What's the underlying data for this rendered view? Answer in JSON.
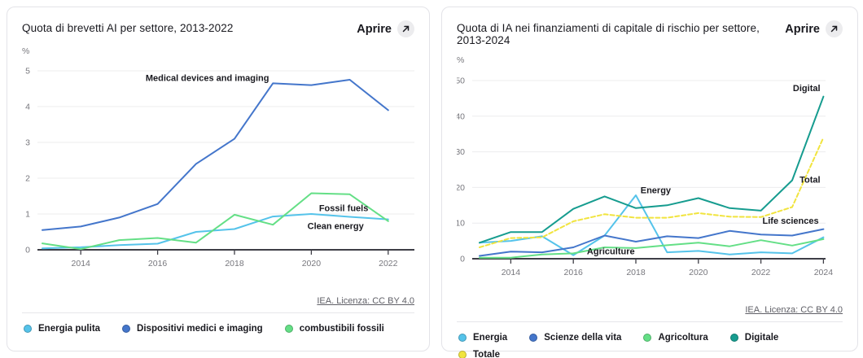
{
  "cards": [
    {
      "title": "Quota di brevetti AI per settore, 2013-2022",
      "open_label": "Aprire",
      "attribution": "IEA. Licenza: CC BY 4.0"
    },
    {
      "title": "Quota di IA nei finanziamenti di capitale di rischio per settore, 2013-2024",
      "open_label": "Aprire",
      "attribution": "IEA. Licenza: CC BY 4.0"
    }
  ],
  "chart_data": [
    {
      "type": "line",
      "title": "Quota di brevetti AI per settore, 2013-2022",
      "unit": "%",
      "x": [
        2013,
        2014,
        2015,
        2016,
        2017,
        2018,
        2019,
        2020,
        2021,
        2022
      ],
      "x_ticks": [
        2014,
        2016,
        2018,
        2020,
        2022
      ],
      "y_ticks": [
        0,
        1,
        2,
        3,
        4,
        5
      ],
      "ylim": [
        0,
        5
      ],
      "grid": true,
      "legend_position": "bottom",
      "series": [
        {
          "name": "Energia pulita",
          "color": "#55C3EA",
          "dashed": false,
          "values": [
            0.04,
            0.07,
            0.13,
            0.17,
            0.5,
            0.58,
            0.93,
            1.0,
            0.92,
            0.85
          ]
        },
        {
          "name": "Dispositivi medici e imaging",
          "color": "#4476CB",
          "dashed": false,
          "values": [
            0.55,
            0.65,
            0.9,
            1.28,
            2.4,
            3.1,
            4.65,
            4.6,
            4.75,
            3.9
          ]
        },
        {
          "name": "combustibili fossili",
          "color": "#64DF86",
          "dashed": false,
          "values": [
            0.18,
            0.02,
            0.27,
            0.33,
            0.2,
            0.98,
            0.7,
            1.58,
            1.55,
            0.8
          ]
        }
      ],
      "annotations": [
        {
          "text": "Medical devices and imaging",
          "x": 2018.9,
          "y": 4.72,
          "anchor": "end"
        },
        {
          "text": "Fossil fuels",
          "x": 2020.2,
          "y": 1.08,
          "anchor": "start"
        },
        {
          "text": "Clean energy",
          "x": 2019.9,
          "y": 0.58,
          "anchor": "start"
        }
      ]
    },
    {
      "type": "line",
      "title": "Quota di IA nei finanziamenti di capitale di rischio per settore, 2013-2024",
      "unit": "%",
      "x": [
        2013,
        2014,
        2015,
        2016,
        2017,
        2018,
        2019,
        2020,
        2021,
        2022,
        2023,
        2024
      ],
      "x_ticks": [
        2014,
        2016,
        2018,
        2020,
        2022,
        2024
      ],
      "y_ticks": [
        0,
        10,
        20,
        30,
        40,
        50
      ],
      "ylim": [
        0,
        50
      ],
      "grid": true,
      "legend_position": "bottom",
      "series": [
        {
          "name": "Energia",
          "color": "#55C3EA",
          "dashed": false,
          "values": [
            4.5,
            5,
            6.3,
            1,
            6.5,
            17.8,
            1.8,
            2.2,
            1.2,
            1.8,
            1.5,
            6
          ]
        },
        {
          "name": "Scienze della vita",
          "color": "#4476CB",
          "dashed": false,
          "values": [
            0.8,
            2,
            1.8,
            3.2,
            6.5,
            4.8,
            6.3,
            5.8,
            7.8,
            6.8,
            6.5,
            8.3
          ]
        },
        {
          "name": "Agricoltura",
          "color": "#64DF86",
          "dashed": false,
          "values": [
            0.3,
            0.3,
            1.2,
            1.5,
            3.2,
            3,
            3.8,
            4.5,
            3.5,
            5.2,
            3.7,
            5.5
          ]
        },
        {
          "name": "Digitale",
          "color": "#169C8F",
          "dashed": false,
          "values": [
            4.5,
            7.5,
            7.5,
            14,
            17.5,
            14.2,
            15,
            17,
            14.2,
            13.5,
            22,
            45.5
          ]
        },
        {
          "name": "Totale",
          "color": "#F1E43E",
          "dashed": true,
          "values": [
            3.2,
            5.8,
            6,
            10.5,
            12.5,
            11.5,
            11.5,
            12.8,
            11.8,
            11.7,
            14.5,
            34
          ]
        }
      ],
      "annotations": [
        {
          "text": "Energy",
          "x": 2018.15,
          "y": 18.4,
          "anchor": "start"
        },
        {
          "text": "Agriculture",
          "x": 2017.2,
          "y": 1.2,
          "anchor": "middle"
        },
        {
          "text": "Digital",
          "x": 2023.9,
          "y": 47,
          "anchor": "end"
        },
        {
          "text": "Total",
          "x": 2023.9,
          "y": 21.3,
          "anchor": "end"
        },
        {
          "text": "Life sciences",
          "x": 2023.85,
          "y": 9.8,
          "anchor": "end"
        }
      ]
    }
  ]
}
